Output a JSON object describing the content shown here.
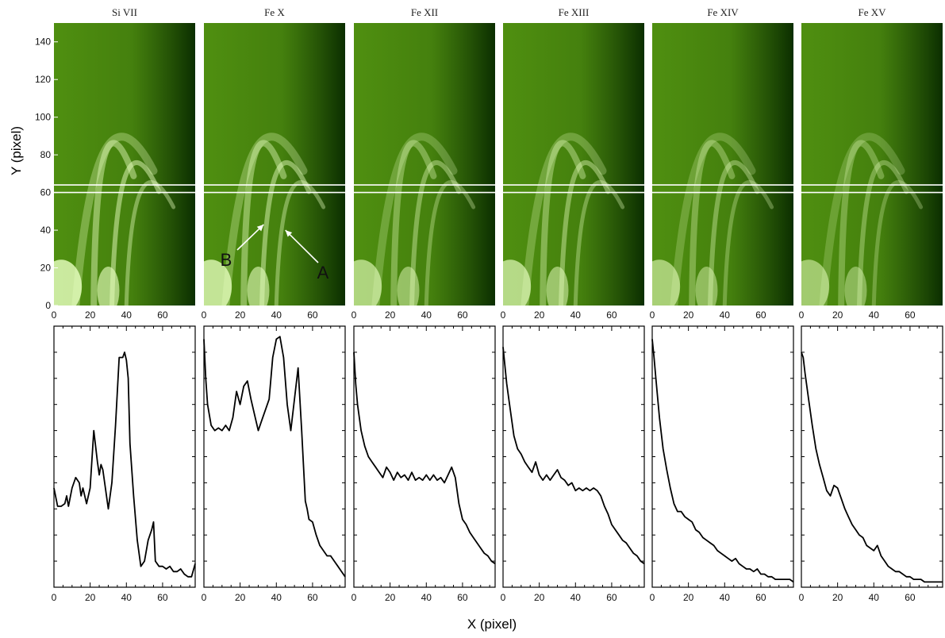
{
  "figure": {
    "ylabel": "Y (pixel)",
    "xlabel": "X (pixel)"
  },
  "chart_data": [
    {
      "type": "heatmap",
      "description": "EUV intensity images of coronal loops",
      "panels": [
        "Si VII",
        "Fe X",
        "Fe XII",
        "Fe XIII",
        "Fe XIV",
        "Fe XV"
      ],
      "xlim": [
        0,
        78
      ],
      "ylim": [
        0,
        150
      ],
      "xticks": [
        0,
        20,
        40,
        60
      ],
      "yticks": [
        0,
        20,
        40,
        60,
        80,
        100,
        120,
        140
      ],
      "ylabel": "Y (pixel)",
      "slit_y": [
        60,
        64
      ],
      "colors": {
        "dark": "#0b2e00",
        "mid": "#4f8f10",
        "bright": "#e8ffc0",
        "slit": "#ffffff"
      },
      "annotations": [
        {
          "panel": "Fe X",
          "text": "B",
          "arrow_to": [
            33,
            43
          ]
        },
        {
          "panel": "Fe X",
          "text": "A",
          "arrow_to": [
            45,
            40
          ]
        }
      ]
    },
    {
      "type": "line",
      "description": "Intensity cuts across the slit",
      "xlabel": "X (pixel)",
      "xlim": [
        0,
        78
      ],
      "ylim": [
        0,
        1
      ],
      "xticks": [
        0,
        20,
        40,
        60
      ],
      "series": [
        {
          "name": "Si VII",
          "x": [
            0,
            2,
            4,
            6,
            7,
            8,
            10,
            12,
            14,
            15,
            16,
            18,
            20,
            22,
            24,
            25,
            26,
            27,
            28,
            30,
            32,
            34,
            36,
            38,
            39,
            40,
            41,
            42,
            44,
            46,
            48,
            50,
            52,
            54,
            55,
            56,
            58,
            60,
            62,
            64,
            66,
            68,
            70,
            72,
            74,
            76,
            78
          ],
          "y": [
            0.38,
            0.31,
            0.31,
            0.32,
            0.35,
            0.31,
            0.38,
            0.42,
            0.4,
            0.35,
            0.38,
            0.32,
            0.38,
            0.6,
            0.48,
            0.43,
            0.47,
            0.45,
            0.4,
            0.3,
            0.4,
            0.62,
            0.88,
            0.88,
            0.9,
            0.87,
            0.8,
            0.55,
            0.35,
            0.18,
            0.08,
            0.1,
            0.18,
            0.22,
            0.25,
            0.1,
            0.08,
            0.08,
            0.07,
            0.08,
            0.06,
            0.06,
            0.07,
            0.05,
            0.04,
            0.04,
            0.09
          ]
        },
        {
          "name": "Fe X",
          "x": [
            0,
            1,
            2,
            4,
            6,
            8,
            10,
            12,
            14,
            16,
            18,
            20,
            22,
            24,
            26,
            28,
            30,
            32,
            34,
            36,
            38,
            40,
            42,
            44,
            46,
            48,
            50,
            52,
            54,
            56,
            57,
            58,
            60,
            62,
            64,
            66,
            68,
            70,
            72,
            74,
            76,
            78
          ],
          "y": [
            0.95,
            0.8,
            0.7,
            0.62,
            0.6,
            0.61,
            0.6,
            0.62,
            0.6,
            0.65,
            0.75,
            0.7,
            0.77,
            0.79,
            0.72,
            0.66,
            0.6,
            0.64,
            0.68,
            0.72,
            0.88,
            0.95,
            0.96,
            0.88,
            0.7,
            0.6,
            0.72,
            0.84,
            0.6,
            0.33,
            0.3,
            0.26,
            0.25,
            0.2,
            0.16,
            0.14,
            0.12,
            0.12,
            0.1,
            0.08,
            0.06,
            0.04
          ]
        },
        {
          "name": "Fe XII",
          "x": [
            0,
            1,
            2,
            4,
            6,
            8,
            10,
            12,
            14,
            16,
            18,
            20,
            22,
            24,
            26,
            28,
            30,
            32,
            34,
            36,
            38,
            40,
            42,
            44,
            46,
            48,
            50,
            52,
            54,
            56,
            58,
            60,
            62,
            64,
            66,
            68,
            70,
            72,
            74,
            76,
            78
          ],
          "y": [
            0.9,
            0.78,
            0.7,
            0.6,
            0.54,
            0.5,
            0.48,
            0.46,
            0.44,
            0.42,
            0.46,
            0.44,
            0.41,
            0.44,
            0.42,
            0.43,
            0.41,
            0.44,
            0.41,
            0.42,
            0.41,
            0.43,
            0.41,
            0.43,
            0.41,
            0.42,
            0.4,
            0.43,
            0.46,
            0.42,
            0.32,
            0.26,
            0.24,
            0.21,
            0.19,
            0.17,
            0.15,
            0.13,
            0.12,
            0.1,
            0.09
          ]
        },
        {
          "name": "Fe XIII",
          "x": [
            0,
            1,
            2,
            4,
            6,
            8,
            10,
            12,
            14,
            16,
            18,
            20,
            22,
            24,
            26,
            28,
            30,
            32,
            34,
            36,
            38,
            40,
            42,
            44,
            46,
            48,
            50,
            52,
            54,
            56,
            58,
            60,
            62,
            64,
            66,
            68,
            70,
            72,
            74,
            76,
            78
          ],
          "y": [
            0.92,
            0.85,
            0.78,
            0.68,
            0.58,
            0.53,
            0.51,
            0.48,
            0.46,
            0.44,
            0.48,
            0.43,
            0.41,
            0.43,
            0.41,
            0.43,
            0.45,
            0.42,
            0.41,
            0.39,
            0.4,
            0.37,
            0.38,
            0.37,
            0.38,
            0.37,
            0.38,
            0.37,
            0.35,
            0.31,
            0.28,
            0.24,
            0.22,
            0.2,
            0.18,
            0.17,
            0.15,
            0.13,
            0.12,
            0.1,
            0.09
          ]
        },
        {
          "name": "Fe XIV",
          "x": [
            0,
            1,
            2,
            4,
            6,
            8,
            10,
            12,
            14,
            16,
            18,
            20,
            22,
            24,
            26,
            28,
            30,
            32,
            34,
            36,
            38,
            40,
            42,
            44,
            46,
            48,
            50,
            52,
            54,
            56,
            58,
            60,
            62,
            64,
            66,
            68,
            70,
            72,
            74,
            76,
            78
          ],
          "y": [
            0.95,
            0.88,
            0.8,
            0.65,
            0.53,
            0.45,
            0.38,
            0.32,
            0.29,
            0.29,
            0.27,
            0.26,
            0.25,
            0.22,
            0.21,
            0.19,
            0.18,
            0.17,
            0.16,
            0.14,
            0.13,
            0.12,
            0.11,
            0.1,
            0.11,
            0.09,
            0.08,
            0.07,
            0.07,
            0.06,
            0.07,
            0.05,
            0.05,
            0.04,
            0.04,
            0.03,
            0.03,
            0.03,
            0.03,
            0.03,
            0.02
          ]
        },
        {
          "name": "Fe XV",
          "x": [
            0,
            1,
            2,
            4,
            6,
            8,
            10,
            12,
            14,
            16,
            18,
            20,
            22,
            24,
            26,
            28,
            30,
            32,
            34,
            36,
            38,
            40,
            42,
            44,
            46,
            48,
            50,
            52,
            54,
            56,
            58,
            60,
            62,
            64,
            66,
            68,
            70,
            72,
            74,
            76,
            78
          ],
          "y": [
            0.9,
            0.88,
            0.82,
            0.72,
            0.62,
            0.53,
            0.47,
            0.42,
            0.37,
            0.35,
            0.39,
            0.38,
            0.34,
            0.3,
            0.27,
            0.24,
            0.22,
            0.2,
            0.19,
            0.16,
            0.15,
            0.14,
            0.16,
            0.12,
            0.1,
            0.08,
            0.07,
            0.06,
            0.06,
            0.05,
            0.04,
            0.04,
            0.03,
            0.03,
            0.03,
            0.02,
            0.02,
            0.02,
            0.02,
            0.02,
            0.02
          ]
        }
      ]
    }
  ]
}
